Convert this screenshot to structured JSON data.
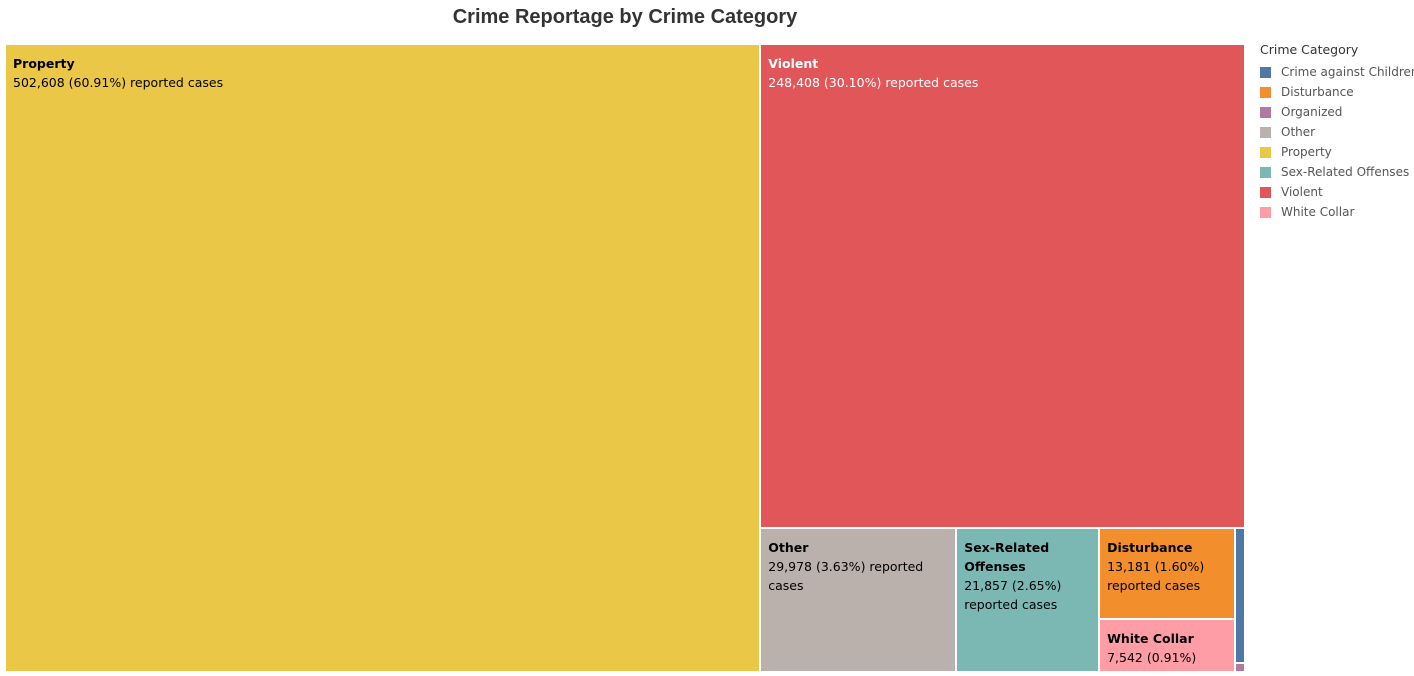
{
  "chart_data": {
    "type": "treemap",
    "title": "Crime Reportage by Crime Category",
    "legend_title": "Crime Category",
    "legend_position": "right",
    "value_suffix": "reported cases",
    "categories": [
      {
        "name": "Property",
        "value": 502608,
        "value_label": "502,608",
        "percent_label": "60.91%",
        "color": "#EBC747"
      },
      {
        "name": "Violent",
        "value": 248408,
        "value_label": "248,408",
        "percent_label": "30.10%",
        "color": "#E15659"
      },
      {
        "name": "Other",
        "value": 29978,
        "value_label": "29,978",
        "percent_label": "3.63%",
        "color": "#BAB0AC"
      },
      {
        "name": "Sex-Related Offenses",
        "value": 21857,
        "value_label": "21,857",
        "percent_label": "2.65%",
        "color": "#7BB8B4"
      },
      {
        "name": "Disturbance",
        "value": 13181,
        "value_label": "13,181",
        "percent_label": "1.60%",
        "color": "#F28E2B"
      },
      {
        "name": "White Collar",
        "value": 7542,
        "value_label": "7,542",
        "percent_label": "0.91%",
        "color": "#FF9DA7"
      },
      {
        "name": "Crime against Children",
        "value": 1500,
        "color": "#4E79A7"
      },
      {
        "name": "Organized",
        "value": 100,
        "color": "#B07AA1"
      }
    ],
    "legend_order": [
      "Crime against Children",
      "Disturbance",
      "Organized",
      "Other",
      "Property",
      "Sex-Related Offenses",
      "Violent",
      "White Collar"
    ]
  }
}
